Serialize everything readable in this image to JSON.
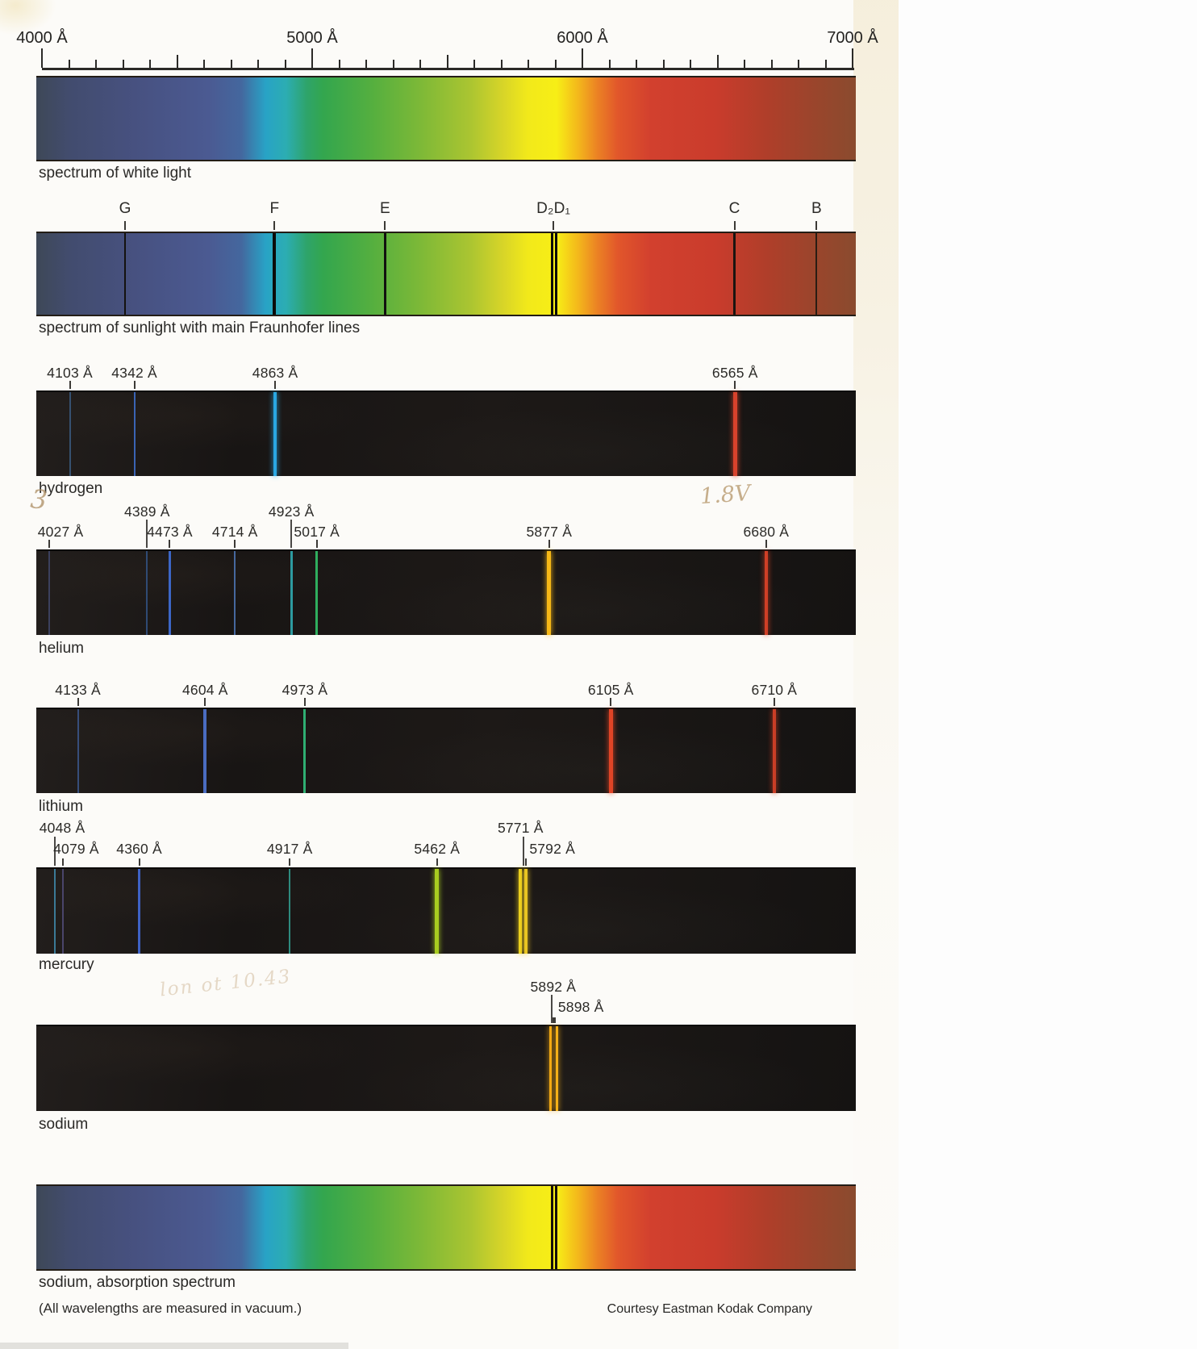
{
  "page": {
    "footnote": "(All wavelengths are measured in vacuum.)",
    "credit": "Courtesy Eastman Kodak Company"
  },
  "handwritten_annotations": [
    {
      "id": "pencil-3",
      "text": "3"
    },
    {
      "id": "pencil-1-8v",
      "text": "1.8V"
    },
    {
      "id": "pencil-scribble",
      "text": "lon ot 10.43"
    }
  ],
  "chart_data": {
    "type": "spectra",
    "title": "",
    "wavelength_unit": "Å",
    "axis": {
      "min": 4000,
      "max": 7000,
      "unit": "Å",
      "minor_tick_step": 100,
      "medium_tick_step": 500,
      "labeled_ticks": [
        {
          "lambda": 4000,
          "label": "4000 Å"
        },
        {
          "lambda": 5000,
          "label": "5000 Å"
        },
        {
          "lambda": 6000,
          "label": "6000 Å"
        },
        {
          "lambda": 7000,
          "label": "7000 Å"
        }
      ]
    },
    "continuum_gradient": [
      [
        0,
        "#3e4857"
      ],
      [
        4,
        "#424c6e"
      ],
      [
        12,
        "#475180"
      ],
      [
        21,
        "#4b5a92"
      ],
      [
        25,
        "#44679e"
      ],
      [
        28,
        "#28a3c6"
      ],
      [
        30.5,
        "#2cadb2"
      ],
      [
        33,
        "#2ea46a"
      ],
      [
        35,
        "#33a64e"
      ],
      [
        41,
        "#55af3f"
      ],
      [
        47,
        "#7eb937"
      ],
      [
        53,
        "#abc531"
      ],
      [
        57,
        "#d8d528"
      ],
      [
        60,
        "#f2e91a"
      ],
      [
        63.5,
        "#f7ee16"
      ],
      [
        66,
        "#f4ba1b"
      ],
      [
        68.5,
        "#eb8124"
      ],
      [
        71,
        "#e1562b"
      ],
      [
        75,
        "#d2402e"
      ],
      [
        83,
        "#c93c2c"
      ],
      [
        89,
        "#b03e2a"
      ],
      [
        95,
        "#9a452c"
      ],
      [
        100,
        "#8a4b2e"
      ]
    ],
    "spectra": [
      {
        "id": "white-light",
        "caption": "spectrum of white light",
        "kind": "continuum",
        "lines": []
      },
      {
        "id": "sunlight",
        "caption": "spectrum of sunlight with main Fraunhofer lines",
        "kind": "continuum_with_absorption_lines",
        "lines": [
          {
            "label": "G",
            "lambda": 4308,
            "color": "#14120f",
            "width": 2
          },
          {
            "label": "F",
            "lambda": 4861,
            "color": "#0c0b09",
            "width": 4
          },
          {
            "label": "E",
            "lambda": 5270,
            "color": "#121110",
            "width": 3
          },
          {
            "label": "D₂D₁",
            "lambda": 5893,
            "color": "#0c0b09",
            "width": 3,
            "double": true
          },
          {
            "label": "C",
            "lambda": 6563,
            "color": "#1b1410",
            "width": 3
          },
          {
            "label": "B",
            "lambda": 6867,
            "color": "#2a1d14",
            "width": 2
          }
        ]
      },
      {
        "id": "hydrogen",
        "caption": "hydrogen",
        "kind": "emission",
        "lines": [
          {
            "label": "4103 Å",
            "lambda": 4103,
            "color": "#3c6088",
            "width": 2,
            "faint": true
          },
          {
            "label": "4342 Å",
            "lambda": 4342,
            "color": "#3a64b4",
            "width": 2
          },
          {
            "label": "4863 Å",
            "lambda": 4863,
            "color": "#2aa7e2",
            "width": 4,
            "bright": true
          },
          {
            "label": "6565 Å",
            "lambda": 6565,
            "color": "#d8422c",
            "width": 5,
            "bright": true
          }
        ]
      },
      {
        "id": "helium",
        "caption": "helium",
        "kind": "emission",
        "lines": [
          {
            "label": "4027 Å",
            "lambda": 4027,
            "color": "#434a70",
            "width": 2,
            "faint": true
          },
          {
            "label": "4389 Å",
            "lambda": 4389,
            "color": "#35588e",
            "width": 2,
            "faint": true,
            "row": "upper",
            "leader": true,
            "tick": false
          },
          {
            "label": "4473 Å",
            "lambda": 4473,
            "color": "#3c66c6",
            "width": 3
          },
          {
            "label": "4714 Å",
            "lambda": 4714,
            "color": "#46689e",
            "width": 2
          },
          {
            "label": "4923 Å",
            "lambda": 4923,
            "color": "#2d9aa0",
            "width": 3,
            "row": "upper",
            "leader": true,
            "tick": false
          },
          {
            "label": "5017 Å",
            "lambda": 5017,
            "color": "#2fae5e",
            "width": 3
          },
          {
            "label": "5877 Å",
            "lambda": 5877,
            "color": "#f6b816",
            "width": 5,
            "bright": true
          },
          {
            "label": "6680 Å",
            "lambda": 6680,
            "color": "#cf3f26",
            "width": 4,
            "bright": true
          }
        ]
      },
      {
        "id": "lithium",
        "caption": "lithium",
        "kind": "emission",
        "lines": [
          {
            "label": "4133 Å",
            "lambda": 4133,
            "color": "#3d5c96",
            "width": 2,
            "faint": true
          },
          {
            "label": "4604 Å",
            "lambda": 4604,
            "color": "#4a6cc0",
            "width": 4
          },
          {
            "label": "4973 Å",
            "lambda": 4973,
            "color": "#2fae72",
            "width": 3
          },
          {
            "label": "6105 Å",
            "lambda": 6105,
            "color": "#e04426",
            "width": 5,
            "bright": true
          },
          {
            "label": "6710 Å",
            "lambda": 6710,
            "color": "#c93e26",
            "width": 4,
            "bright": true
          }
        ]
      },
      {
        "id": "mercury",
        "caption": "mercury",
        "kind": "emission",
        "lines": [
          {
            "label": "4048 Å",
            "lambda": 4048,
            "color": "#3b7a96",
            "width": 2,
            "row": "upper",
            "leader": true,
            "tick": false
          },
          {
            "label": "4079 Å",
            "lambda": 4079,
            "color": "#565180",
            "width": 2,
            "faint": true
          },
          {
            "label": "4360 Å",
            "lambda": 4360,
            "color": "#3e62c4",
            "width": 3
          },
          {
            "label": "4917 Å",
            "lambda": 4917,
            "color": "#2e8a7e",
            "width": 2
          },
          {
            "label": "5462 Å",
            "lambda": 5462,
            "color": "#a8cc20",
            "width": 5,
            "bright": true
          },
          {
            "label": "5771 Å",
            "lambda": 5771,
            "color": "#ecd01e",
            "width": 4,
            "bright": true,
            "row": "upper",
            "leader": true,
            "tick": false
          },
          {
            "label": "5792 Å",
            "lambda": 5792,
            "color": "#e8c522",
            "width": 4,
            "bright": true,
            "label_side": "right"
          }
        ]
      },
      {
        "id": "sodium",
        "caption": "sodium",
        "kind": "emission",
        "lines": [
          {
            "label": "5892 Å",
            "lambda": 5892,
            "color": "#f4aa14",
            "width": 3,
            "bright": true,
            "row": "upper"
          },
          {
            "label": "5898 Å",
            "lambda": 5898,
            "color": "#f4b018",
            "width": 3,
            "bright": true,
            "label_side": "right",
            "leader": true
          }
        ]
      },
      {
        "id": "sodium-absorption",
        "caption": "sodium, absorption spectrum",
        "kind": "continuum_with_absorption_lines",
        "lines": [
          {
            "lambda": 5893,
            "color": "#16100a",
            "width": 3,
            "double": true
          }
        ]
      }
    ]
  }
}
